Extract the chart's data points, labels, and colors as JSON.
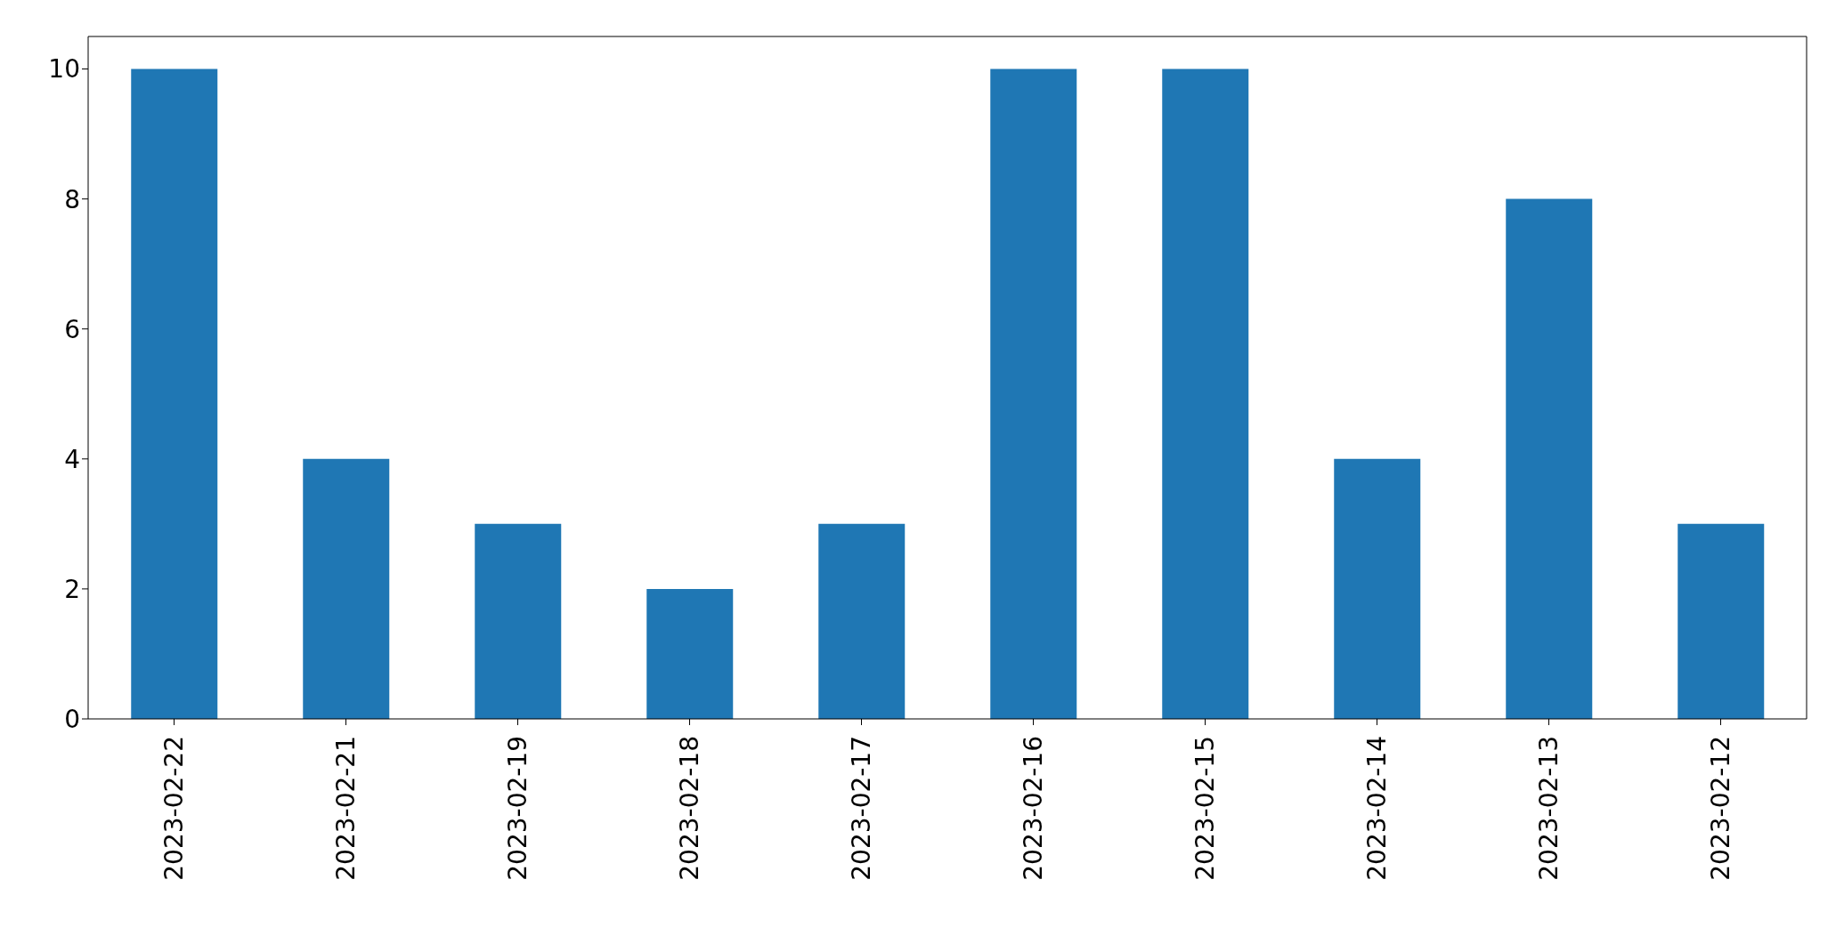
{
  "chart_data": {
    "type": "bar",
    "categories": [
      "2023-02-22",
      "2023-02-21",
      "2023-02-19",
      "2023-02-18",
      "2023-02-17",
      "2023-02-16",
      "2023-02-15",
      "2023-02-14",
      "2023-02-13",
      "2023-02-12"
    ],
    "values": [
      10,
      4,
      3,
      2,
      3,
      10,
      10,
      4,
      8,
      3
    ],
    "color": "#1f77b4",
    "ylim": [
      0,
      10.5
    ],
    "yticks": [
      0,
      2,
      4,
      6,
      8,
      10
    ],
    "grid": false
  }
}
